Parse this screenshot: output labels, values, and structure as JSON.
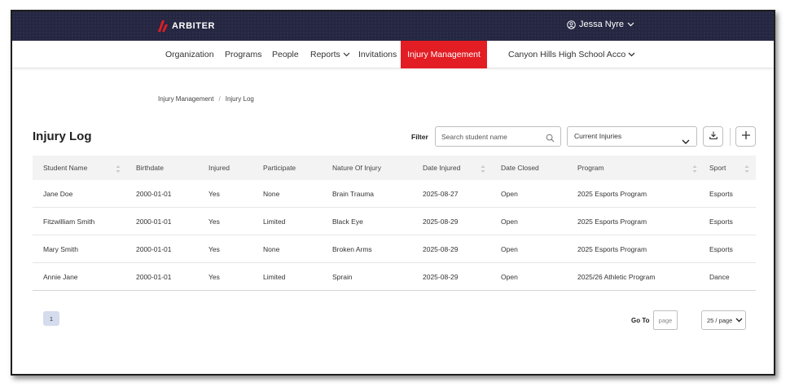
{
  "header": {
    "brand": "ARBITER",
    "user_name": "Jessa Nyre"
  },
  "nav": {
    "items": [
      {
        "label": "Organization"
      },
      {
        "label": "Programs"
      },
      {
        "label": "People"
      },
      {
        "label": "Reports"
      },
      {
        "label": "Invitations"
      },
      {
        "label": "Injury Management"
      },
      {
        "label": "Canyon Hills High School Acco"
      }
    ],
    "active_color": "#e31d24"
  },
  "breadcrumb": [
    "Injury Management",
    "/",
    "Injury Log"
  ],
  "page_title": "Injury Log",
  "filter": {
    "label": "Filter",
    "search_placeholder": "Search student name",
    "status_selected": "Current Injuries"
  },
  "table": {
    "columns": [
      "Student Name",
      "Birthdate",
      "Injured",
      "Participate",
      "Nature Of Injury",
      "Date Injured",
      "Date Closed",
      "Program",
      "Sport"
    ],
    "rows": [
      [
        "Jane Doe",
        "2000-01-01",
        "Yes",
        "None",
        "Brain Trauma",
        "2025-08-27",
        "Open",
        "2025 Esports Program",
        "Esports"
      ],
      [
        "Fitzwilliam Smith",
        "2000-01-01",
        "Yes",
        "Limited",
        "Black Eye",
        "2025-08-29",
        "Open",
        "2025 Esports Program",
        "Esports"
      ],
      [
        "Mary Smith",
        "2000-01-01",
        "Yes",
        "None",
        "Broken Arms",
        "2025-08-29",
        "Open",
        "2025 Esports Program",
        "Esports"
      ],
      [
        "Annie Jane",
        "2000-01-01",
        "Yes",
        "Limited",
        "Sprain",
        "2025-08-29",
        "Open",
        "2025/26 Athletic Program",
        "Dance"
      ]
    ]
  },
  "pagination": {
    "current_page": "1",
    "goto_label": "Go To",
    "goto_placeholder": "page",
    "page_size": "25 / page"
  },
  "colors": {
    "topbar": "#252641",
    "accent": "#e31d24",
    "page_chip": "#d4dced"
  },
  "icons": [
    "arbiter-logo-icon",
    "user-circle-icon",
    "chevron-down-icon",
    "search-icon",
    "download-icon",
    "plus-icon",
    "sort-icon"
  ]
}
